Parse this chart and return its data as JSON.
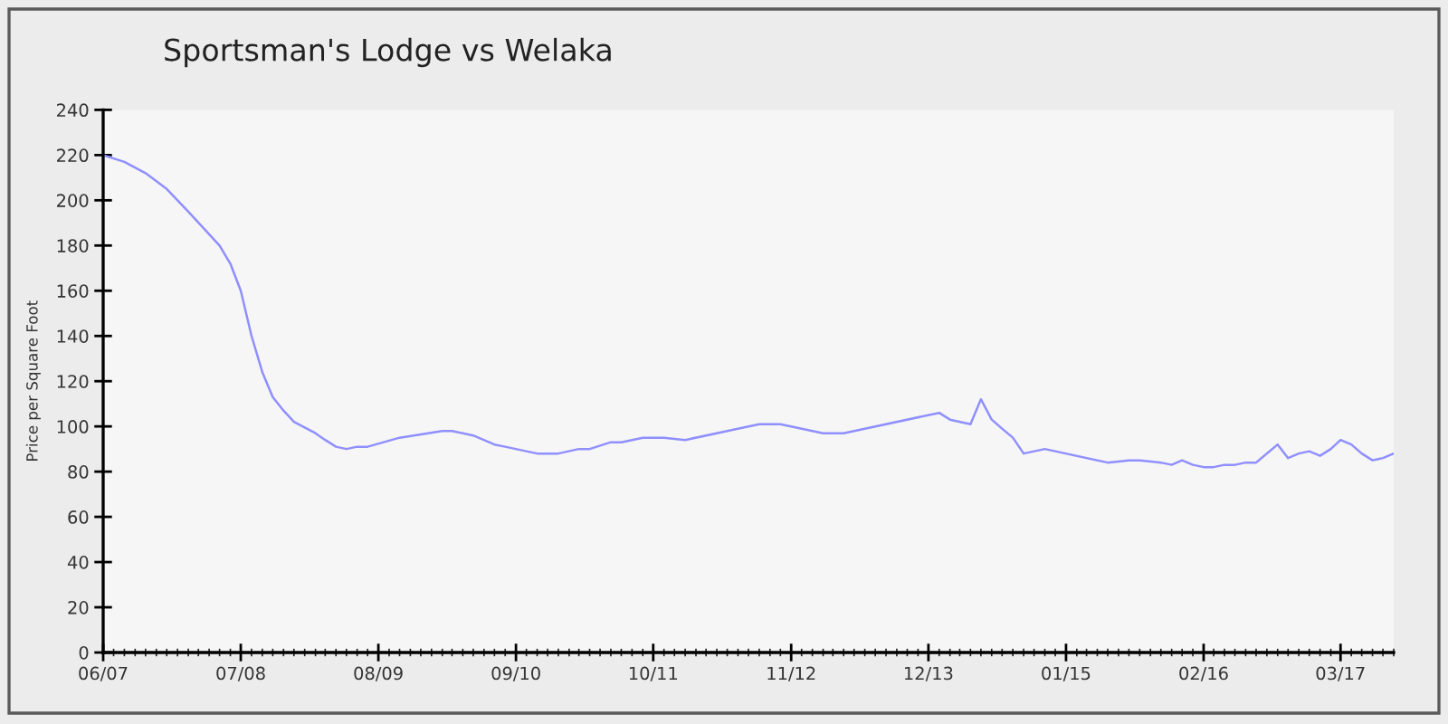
{
  "chart_data": {
    "type": "line",
    "title": "Sportsman's Lodge vs Welaka",
    "ylabel": "Price per Square Foot",
    "x": [
      "2007-06",
      "2007-08",
      "2007-10",
      "2007-12",
      "2008-02",
      "2008-04",
      "2008-05",
      "2008-06",
      "2008-07",
      "2008-08",
      "2008-09",
      "2008-10",
      "2008-11",
      "2008-12",
      "2009-02",
      "2009-03",
      "2009-04",
      "2009-05",
      "2009-06",
      "2009-07",
      "2009-10",
      "2010-02",
      "2010-03",
      "2010-05",
      "2010-07",
      "2010-08",
      "2010-10",
      "2010-11",
      "2011-01",
      "2011-03",
      "2011-04",
      "2011-06",
      "2011-07",
      "2011-09",
      "2011-11",
      "2012-01",
      "2012-05",
      "2012-08",
      "2012-10",
      "2013-02",
      "2013-04",
      "2014-01",
      "2014-02",
      "2014-04",
      "2014-05",
      "2014-06",
      "2014-07",
      "2014-08",
      "2014-09",
      "2014-11",
      "2015-05",
      "2015-07",
      "2015-08",
      "2015-10",
      "2015-11",
      "2015-12",
      "2016-01",
      "2016-02",
      "2016-03",
      "2016-04",
      "2016-05",
      "2016-06",
      "2016-07",
      "2016-09",
      "2016-10",
      "2016-11",
      "2016-12",
      "2017-01",
      "2017-02",
      "2017-03",
      "2017-04",
      "2017-05",
      "2017-06",
      "2017-07",
      "2017-08"
    ],
    "series": [
      {
        "color": "#8f8fff",
        "values": [
          220,
          217,
          212,
          205,
          195,
          185,
          180,
          172,
          160,
          140,
          124,
          113,
          107,
          102,
          97,
          94,
          91,
          90,
          91,
          91,
          95,
          98,
          98,
          96,
          92,
          91,
          89,
          88,
          88,
          90,
          90,
          93,
          93,
          95,
          95,
          94,
          98,
          101,
          101,
          97,
          97,
          106,
          103,
          101,
          112,
          103,
          99,
          95,
          88,
          90,
          84,
          85,
          85,
          84,
          83,
          85,
          83,
          82,
          82,
          83,
          83,
          84,
          84,
          92,
          86,
          88,
          89,
          87,
          90,
          94,
          92,
          88,
          85,
          86,
          88
        ]
      }
    ],
    "xlim": [
      "2007-06",
      "2017-08"
    ],
    "xticks": [
      {
        "value": "2007-06",
        "label": "06/07"
      },
      {
        "value": "2008-07",
        "label": "07/08"
      },
      {
        "value": "2009-08",
        "label": "08/09"
      },
      {
        "value": "2010-09",
        "label": "09/10"
      },
      {
        "value": "2011-10",
        "label": "10/11"
      },
      {
        "value": "2012-11",
        "label": "11/12"
      },
      {
        "value": "2013-12",
        "label": "12/13"
      },
      {
        "value": "2015-01",
        "label": "01/15"
      },
      {
        "value": "2016-02",
        "label": "02/16"
      },
      {
        "value": "2017-03",
        "label": "03/17"
      }
    ],
    "ylim": [
      0,
      240
    ],
    "yticks": [
      0,
      20,
      40,
      60,
      80,
      100,
      120,
      140,
      160,
      180,
      200,
      220,
      240
    ]
  }
}
